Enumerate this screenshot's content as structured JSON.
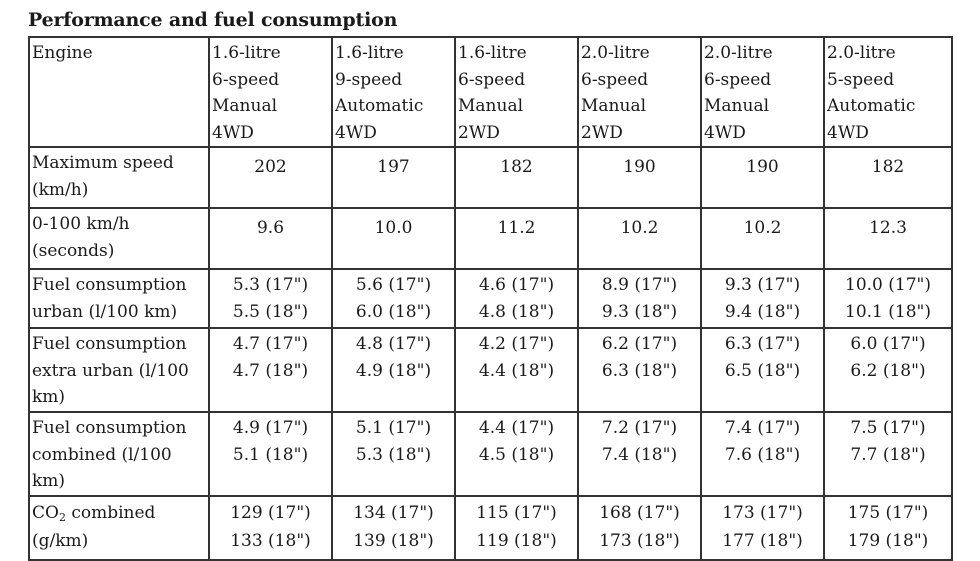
{
  "title": "Performance and fuel consumption",
  "header": {
    "label": "Engine",
    "engines": [
      [
        "1.6-litre",
        "6-speed",
        "Manual",
        "4WD"
      ],
      [
        "1.6-litre",
        "9-speed",
        "Automatic",
        "4WD"
      ],
      [
        "1.6-litre",
        "6-speed",
        "Manual",
        "2WD"
      ],
      [
        "2.0-litre",
        "6-speed",
        "Manual",
        "2WD"
      ],
      [
        "2.0-litre",
        "6-speed",
        "Manual",
        "4WD"
      ],
      [
        "2.0-litre",
        "5-speed",
        "Automatic",
        "4WD"
      ]
    ]
  },
  "rows": {
    "max_speed": {
      "label": [
        "Maximum speed",
        "(km/h)"
      ],
      "values": [
        "202",
        "197",
        "182",
        "190",
        "190",
        "182"
      ]
    },
    "accel": {
      "label": [
        "0-100 km/h",
        "(seconds)"
      ],
      "values": [
        "9.6",
        "10.0",
        "11.2",
        "10.2",
        "10.2",
        "12.3"
      ]
    },
    "urban": {
      "label": [
        "Fuel consumption",
        "urban (l/100 km)"
      ],
      "values": [
        [
          "5.3 (17\")",
          "5.5 (18\")"
        ],
        [
          "5.6 (17\")",
          "6.0 (18\")"
        ],
        [
          "4.6 (17\")",
          "4.8 (18\")"
        ],
        [
          "8.9 (17\")",
          "9.3 (18\")"
        ],
        [
          "9.3 (17\")",
          "9.4 (18\")"
        ],
        [
          "10.0 (17\")",
          "10.1 (18\")"
        ]
      ]
    },
    "extra_urban": {
      "label": [
        "Fuel consumption",
        "extra urban (l/100",
        "km)"
      ],
      "values": [
        [
          "4.7 (17\")",
          "4.7 (18\")"
        ],
        [
          "4.8 (17\")",
          "4.9 (18\")"
        ],
        [
          "4.2 (17\")",
          "4.4 (18\")"
        ],
        [
          "6.2 (17\")",
          "6.3 (18\")"
        ],
        [
          "6.3 (17\")",
          "6.5 (18\")"
        ],
        [
          "6.0 (17\")",
          "6.2 (18\")"
        ]
      ]
    },
    "combined": {
      "label": [
        "Fuel consumption",
        "combined (l/100",
        "km)"
      ],
      "values": [
        [
          "4.9 (17\")",
          "5.1 (18\")"
        ],
        [
          "5.1 (17\")",
          "5.3 (18\")"
        ],
        [
          "4.4 (17\")",
          "4.5 (18\")"
        ],
        [
          "7.2 (17\")",
          "7.4 (18\")"
        ],
        [
          "7.4 (17\")",
          "7.6 (18\")"
        ],
        [
          "7.5 (17\")",
          "7.7 (18\")"
        ]
      ]
    },
    "co2": {
      "label_prefix": "CO",
      "label_sub": "2",
      "label_suffix": " combined",
      "label_line2": "(g/km)",
      "values": [
        [
          "129 (17\")",
          "133 (18\")"
        ],
        [
          "134 (17\")",
          "139 (18\")"
        ],
        [
          "115 (17\")",
          "119 (18\")"
        ],
        [
          "168 (17\")",
          "173 (18\")"
        ],
        [
          "173 (17\")",
          "177 (18\")"
        ],
        [
          "175 (17\")",
          "179 (18\")"
        ]
      ]
    }
  }
}
